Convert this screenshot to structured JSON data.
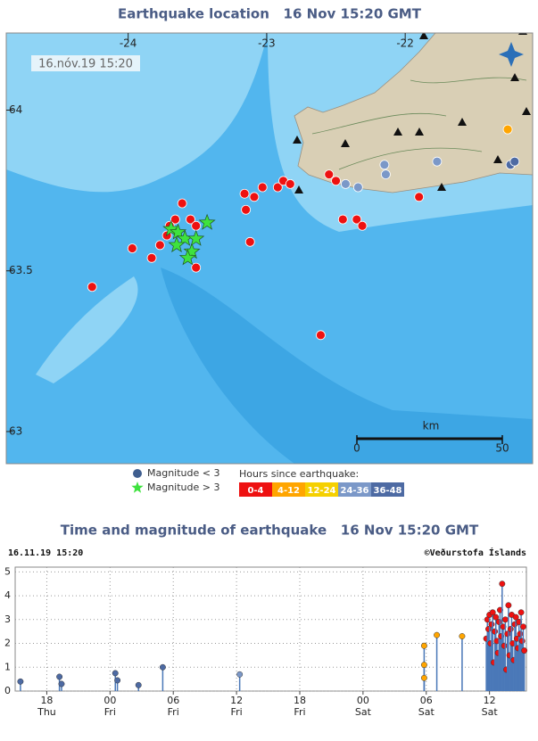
{
  "map": {
    "title": "Earthquake location   16 Nov 15:20 GMT",
    "stamp": "16.nóv.19 15:20",
    "xlim": [
      -24.88,
      -21.08
    ],
    "ylim": [
      62.9,
      64.24
    ],
    "xticks": [
      -24,
      -23,
      -22
    ],
    "yticks": [
      64,
      63.5,
      63
    ],
    "scale": {
      "unit": "km",
      "labels": [
        0,
        50
      ]
    },
    "series": [
      {
        "marker": "circle",
        "color": "#ee1111",
        "lon": [
          -23.61,
          -23.66,
          -23.55,
          -23.7,
          -23.51,
          -23.72,
          -23.77,
          -23.97,
          -23.83,
          -23.51,
          -24.26,
          -23.16,
          -23.09,
          -23.03,
          -22.92,
          -22.88,
          -22.83,
          -23.15,
          -23.12,
          -22.55,
          -22.5,
          -22.45,
          -22.35,
          -22.31,
          -21.9,
          -22.61
        ],
        "lat": [
          63.71,
          63.66,
          63.66,
          63.64,
          63.64,
          63.61,
          63.58,
          63.57,
          63.54,
          63.51,
          63.45,
          63.74,
          63.73,
          63.76,
          63.76,
          63.78,
          63.77,
          63.69,
          63.59,
          63.8,
          63.78,
          63.66,
          63.66,
          63.64,
          63.73,
          63.3
        ]
      },
      {
        "marker": "circle",
        "color": "#ffa500",
        "lon": [
          -21.26
        ],
        "lat": [
          63.94
        ]
      },
      {
        "marker": "circle",
        "color": "#7b98c8",
        "lon": [
          -22.15,
          -21.77,
          -22.14,
          -22.43,
          -22.34
        ],
        "lat": [
          63.83,
          63.84,
          63.8,
          63.77,
          63.76
        ]
      },
      {
        "marker": "circle",
        "color": "#4d6aa3",
        "lon": [
          -21.24,
          -21.21
        ],
        "lat": [
          63.83,
          63.84
        ]
      },
      {
        "marker": "star",
        "color": "#3ee23e",
        "lon": [
          -23.69,
          -23.64,
          -23.59,
          -23.65,
          -23.54,
          -23.57,
          -23.43,
          -23.51
        ],
        "lat": [
          63.63,
          63.62,
          63.6,
          63.58,
          63.56,
          63.54,
          63.65,
          63.6
        ]
      }
    ],
    "legend": {
      "markers": [
        {
          "label": "Magnitude < 3",
          "marker": "circle",
          "color": "#3f5e8f"
        },
        {
          "label": "Magnitude > 3",
          "marker": "star",
          "color": "#3ee23e"
        }
      ],
      "age_title": "Hours since earthquake:",
      "age_bins": [
        {
          "label": "0-4",
          "color": "#ee1111"
        },
        {
          "label": "4-12",
          "color": "#ffa500"
        },
        {
          "label": "12-24",
          "color": "#f5d000"
        },
        {
          "label": "24-36",
          "color": "#7b98c8"
        },
        {
          "label": "36-48",
          "color": "#4d6aa3"
        }
      ]
    }
  },
  "chart_data": {
    "type": "stem",
    "title": "Time and magnitude of earthquake   16 Nov 15:20 GMT",
    "stamp": "16.11.19 15:20",
    "credit": "©Veðurstofa Íslands",
    "xlim": [
      15.0,
      63.5
    ],
    "ylim": [
      0,
      5.2
    ],
    "xticks": [
      {
        "value": 18,
        "label": "18",
        "day": "Thu"
      },
      {
        "value": 24,
        "label": "00",
        "day": "Fri"
      },
      {
        "value": 30,
        "label": "06",
        "day": "Fri"
      },
      {
        "value": 36,
        "label": "12",
        "day": "Fri"
      },
      {
        "value": 42,
        "label": "18",
        "day": "Fri"
      },
      {
        "value": 48,
        "label": "00",
        "day": "Sat"
      },
      {
        "value": 54,
        "label": "06",
        "day": "Sat"
      },
      {
        "value": 60,
        "label": "12",
        "day": "Sat"
      }
    ],
    "yticks": [
      0,
      1,
      2,
      3,
      4,
      5
    ],
    "grid": true,
    "stem_color": "#4a78b8",
    "series": [
      {
        "color": "#4d6aa3",
        "x": [
          15.5,
          19.2,
          19.4,
          24.5,
          24.7,
          26.7,
          29.0
        ],
        "values": [
          0.4,
          0.6,
          0.3,
          0.75,
          0.45,
          0.25,
          1.0
        ]
      },
      {
        "color": "#7b98c8",
        "x": [
          36.3
        ],
        "values": [
          0.7
        ]
      },
      {
        "color": "#ffa500",
        "x": [
          53.8,
          53.8,
          53.8,
          55.0,
          57.4
        ],
        "values": [
          1.9,
          1.1,
          0.55,
          2.35,
          2.3
        ]
      },
      {
        "color": "#ee1111",
        "x": [
          59.7,
          59.8,
          59.9,
          60.0,
          60.1,
          60.2,
          60.3,
          60.4,
          60.5,
          60.6,
          60.7,
          60.8,
          60.9,
          61.0,
          61.1,
          61.2,
          61.3,
          61.4,
          61.5,
          61.6,
          61.7,
          61.8,
          61.9,
          62.0,
          62.1,
          62.2,
          62.3,
          62.4,
          62.5,
          62.6,
          62.7,
          62.8,
          62.9,
          63.0,
          63.1,
          63.2,
          63.3
        ],
        "values": [
          2.2,
          3.0,
          2.6,
          3.2,
          2.0,
          2.8,
          3.3,
          1.2,
          2.5,
          3.1,
          2.1,
          1.6,
          2.9,
          3.4,
          2.3,
          4.5,
          2.7,
          1.9,
          3.0,
          0.9,
          2.4,
          3.6,
          1.5,
          2.6,
          3.2,
          2.0,
          1.3,
          2.8,
          3.1,
          2.2,
          1.8,
          2.9,
          2.4,
          3.3,
          2.1,
          2.7,
          1.7
        ]
      }
    ]
  }
}
